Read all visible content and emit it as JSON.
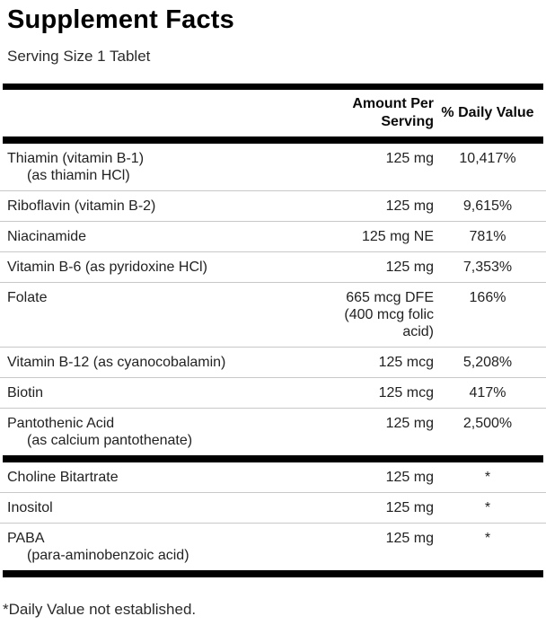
{
  "title": "Supplement Facts",
  "serving_size": "Serving Size 1 Tablet",
  "header": {
    "amount": "Amount Per Serving",
    "daily_value": "% Daily Value"
  },
  "rows": [
    {
      "name": "Thiamin (vitamin B-1)",
      "detail": "(as thiamin HCl)",
      "amount": "125 mg",
      "dv": "10,417%"
    },
    {
      "name": "Riboflavin (vitamin B-2)",
      "amount": "125 mg",
      "dv": "9,615%"
    },
    {
      "name": "Niacinamide",
      "amount": "125 mg NE",
      "dv": "781%"
    },
    {
      "name": "Vitamin B-6 (as pyridoxine HCl)",
      "amount": "125 mg",
      "dv": "7,353%"
    },
    {
      "name": "Folate",
      "amount": "665 mcg DFE (400 mcg folic acid)",
      "dv": "166%"
    },
    {
      "name": "Vitamin B-12 (as cyanocobalamin)",
      "amount": "125 mcg",
      "dv": "5,208%"
    },
    {
      "name": "Biotin",
      "amount": "125 mcg",
      "dv": "417%"
    },
    {
      "name": "Pantothenic Acid",
      "detail": "(as calcium pantothenate)",
      "amount": "125 mg",
      "dv": "2,500%"
    },
    {
      "name": "Choline Bitartrate",
      "amount": "125 mg",
      "dv": "*"
    },
    {
      "name": "Inositol",
      "amount": "125 mg",
      "dv": "*"
    },
    {
      "name": "PABA",
      "detail": "(para-aminobenzoic acid)",
      "amount": "125 mg",
      "dv": "*"
    }
  ],
  "footnote": "*Daily Value not established.",
  "colors": {
    "bar": "#000000",
    "separator": "#c8c8c8",
    "text": "#222222"
  }
}
